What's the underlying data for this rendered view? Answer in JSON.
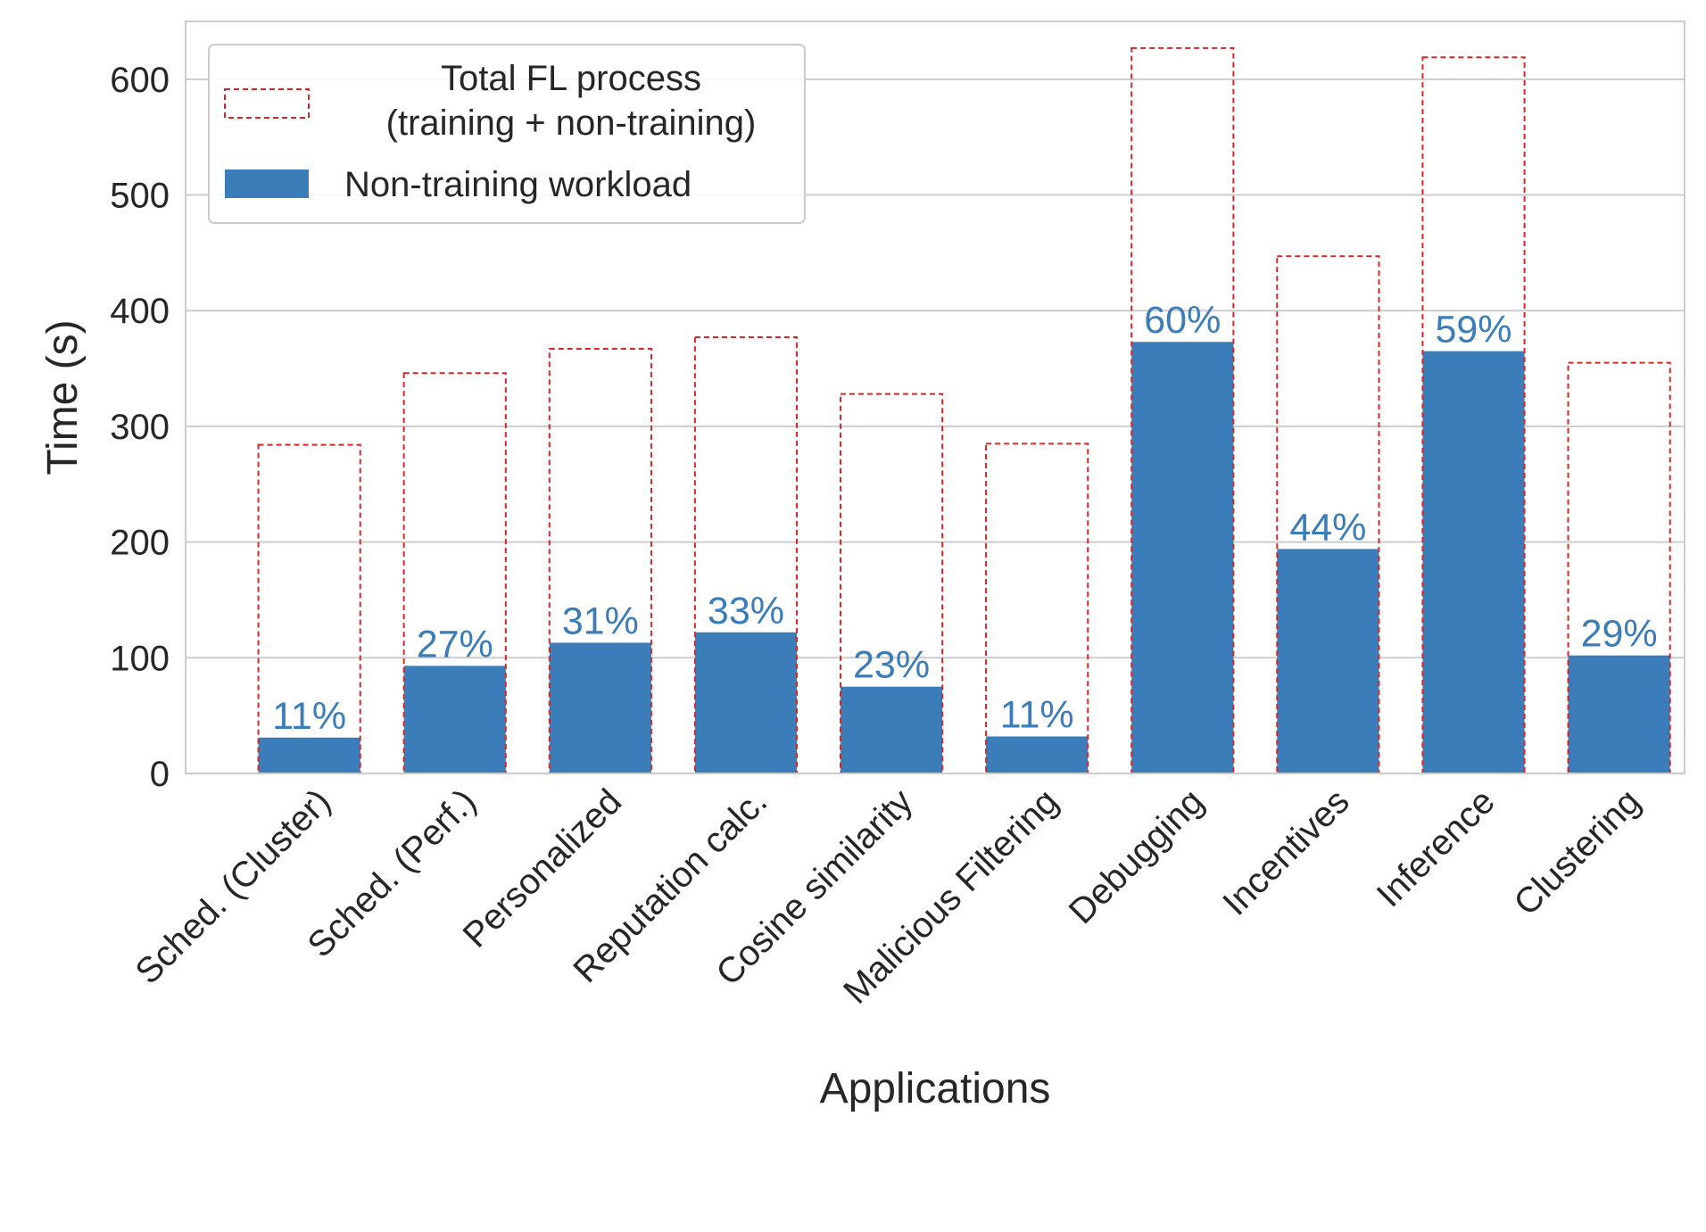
{
  "chart_data": {
    "type": "bar",
    "xlabel": "Applications",
    "ylabel": "Time (s)",
    "ylim": [
      0,
      650
    ],
    "yticks": [
      0,
      100,
      200,
      300,
      400,
      500,
      600
    ],
    "grid": true,
    "legend_position": "top-left",
    "categories": [
      "Sched. (Cluster)",
      "Sched. (Perf.)",
      "Personalized",
      "Reputation calc.",
      "Cosine similarity",
      "Malicious Filtering",
      "Debugging",
      "Incentives",
      "Inference",
      "Clustering"
    ],
    "series": [
      {
        "name": "Total FL process\n(training + non-training)",
        "style": "dashed-outline",
        "color": "#d62728",
        "values": [
          284,
          346,
          367,
          377,
          328,
          285,
          627,
          447,
          619,
          355
        ]
      },
      {
        "name": "Non-training workload",
        "style": "filled",
        "color": "#3a7db8",
        "values": [
          31,
          93,
          113,
          122,
          75,
          32,
          373,
          194,
          365,
          102
        ]
      }
    ],
    "data_labels": [
      "11%",
      "27%",
      "31%",
      "33%",
      "23%",
      "11%",
      "60%",
      "44%",
      "59%",
      "29%"
    ],
    "label_color": "#3a7db8"
  }
}
